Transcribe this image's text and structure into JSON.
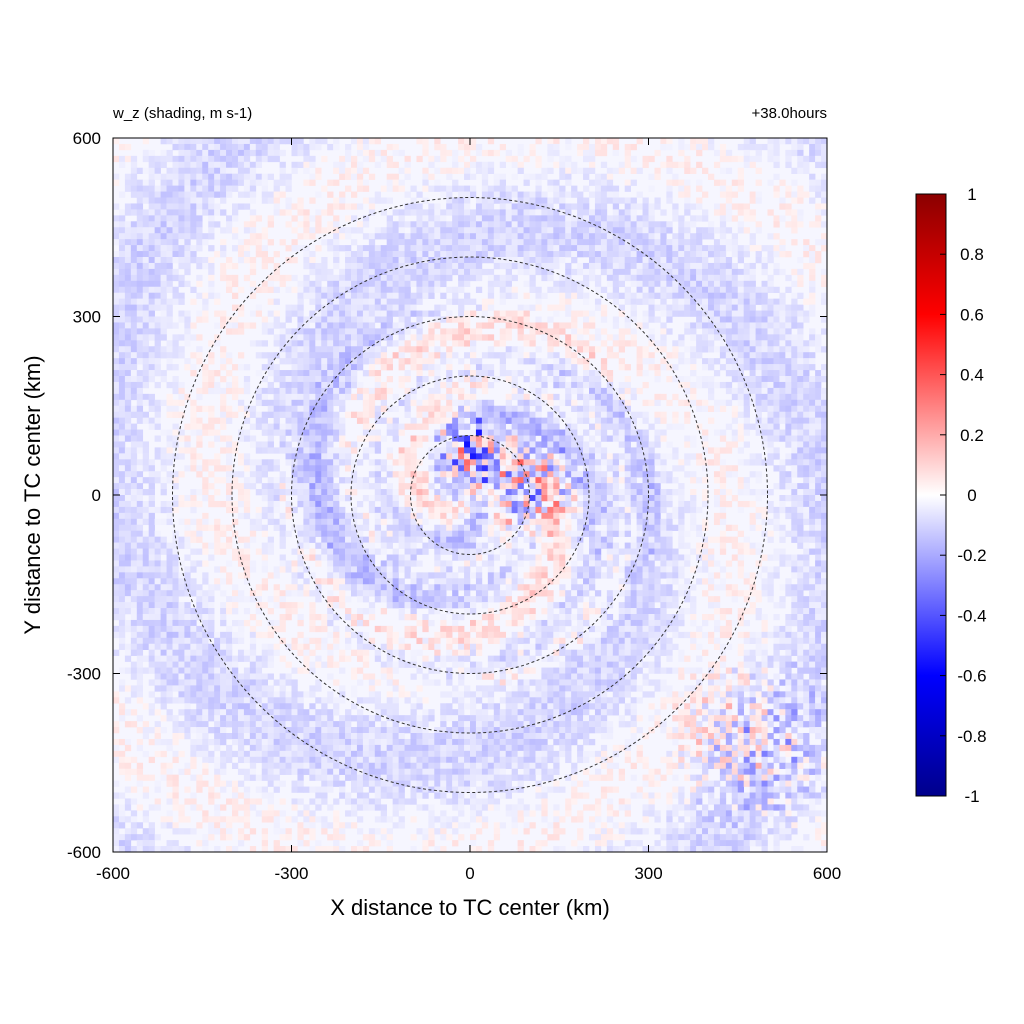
{
  "chart_data": {
    "type": "heatmap",
    "title_left": "w_z (shading, m s-1)",
    "title_right": "+38.0hours",
    "xlabel": "X distance to TC center (km)",
    "ylabel": "Y distance to TC center (km)",
    "xlim": [
      -600,
      600
    ],
    "ylim": [
      -600,
      600
    ],
    "x_ticks": [
      "-600",
      "-300",
      "0",
      "300",
      "600"
    ],
    "y_ticks": [
      "600",
      "300",
      "0",
      "-300",
      "-600"
    ],
    "x_tick_values": [
      -600,
      -300,
      0,
      300,
      600
    ],
    "y_tick_values": [
      600,
      300,
      0,
      -300,
      -600
    ],
    "grid": false,
    "colorbar": {
      "min": -1,
      "max": 1,
      "ticks": [
        "1",
        "0.8",
        "0.6",
        "0.4",
        "0.2",
        "0",
        "-0.2",
        "-0.4",
        "-0.6",
        "-0.8",
        "-1"
      ],
      "tick_values": [
        1,
        0.8,
        0.6,
        0.4,
        0.2,
        0,
        -0.2,
        -0.4,
        -0.6,
        -0.8,
        -1
      ],
      "colors": {
        "-1": "#00008b",
        "-0.6": "#0000ff",
        "0": "#ffffff",
        "0.6": "#ff0000",
        "1": "#8b0000"
      }
    },
    "range_rings_km": [
      100,
      200,
      300,
      400,
      500
    ],
    "field_summary": "weak near-zero noise with stronger +/-0.6 values concentrated in the inner core near (0,0) to (100,0)"
  }
}
